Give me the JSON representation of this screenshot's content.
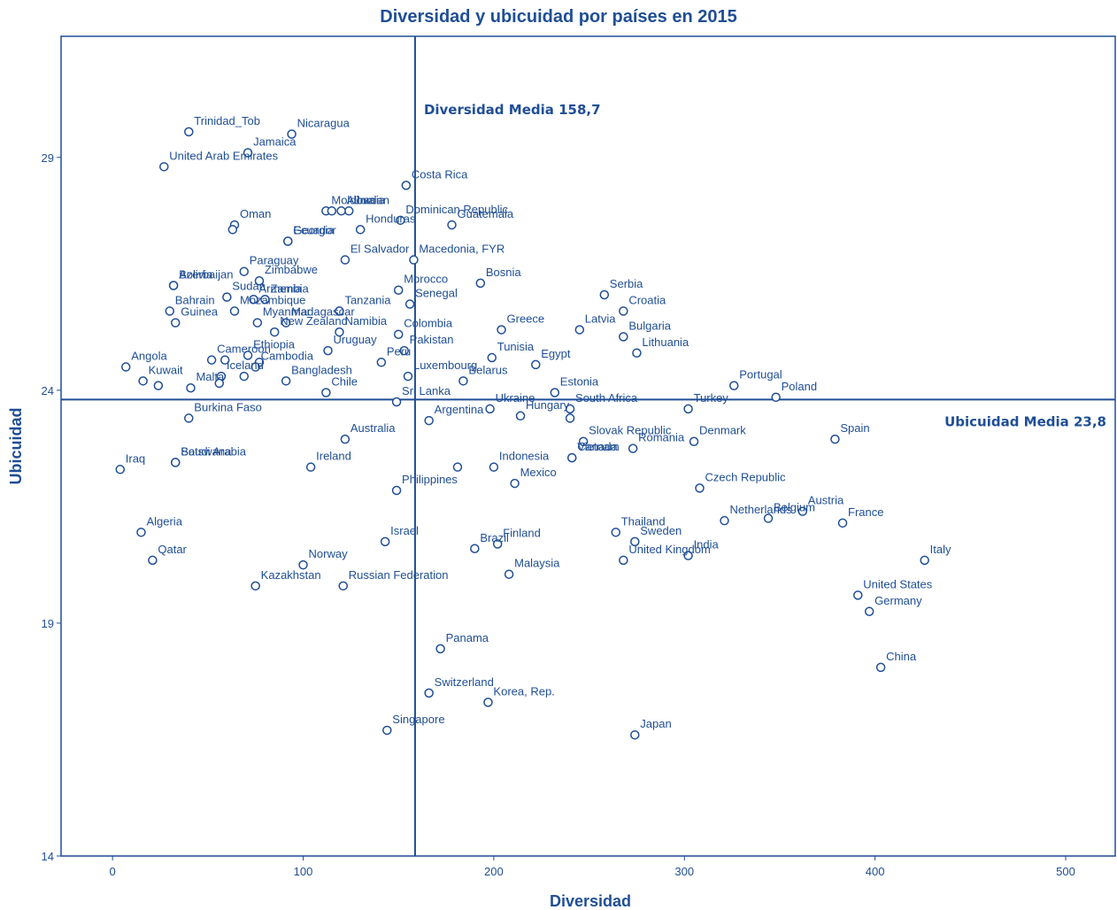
{
  "chart_data": {
    "type": "scatter",
    "title": "Diversidad y ubicuidad por países en 2015",
    "xlabel": "Diversidad",
    "ylabel": "Ubicuidad",
    "xlim": [
      -27,
      526
    ],
    "ylim": [
      14,
      31.6
    ],
    "xticks": [
      0,
      100,
      200,
      300,
      400,
      500
    ],
    "yticks": [
      14,
      19,
      24,
      29
    ],
    "grid": false,
    "reference_lines": [
      {
        "axis": "x",
        "value": 158.7,
        "label": "Diversidad Media 158,7"
      },
      {
        "axis": "y",
        "value": 23.8,
        "label": "Ubicuidad Media 23,8"
      }
    ],
    "points": [
      {
        "name": "Trinidad_Tob",
        "x": 40,
        "y": 29.55
      },
      {
        "name": "Nicaragua",
        "x": 94,
        "y": 29.5
      },
      {
        "name": "Jamaica",
        "x": 71,
        "y": 29.1
      },
      {
        "name": "United Arab Emirates",
        "x": 27,
        "y": 28.8
      },
      {
        "name": "Costa Rica",
        "x": 154,
        "y": 28.4
      },
      {
        "name": "Moldova",
        "x": 112,
        "y": 27.85
      },
      {
        "name": "Jordan",
        "x": 124,
        "y": 27.85
      },
      {
        "name": "Albania",
        "x": 120,
        "y": 27.85
      },
      {
        "name": "",
        "x": 115,
        "y": 27.85
      },
      {
        "name": "Dominican Republic",
        "x": 151,
        "y": 27.65
      },
      {
        "name": "Oman",
        "x": 64,
        "y": 27.55
      },
      {
        "name": "",
        "x": 63,
        "y": 27.45
      },
      {
        "name": "Honduras",
        "x": 130,
        "y": 27.45
      },
      {
        "name": "Guatemala",
        "x": 178,
        "y": 27.55
      },
      {
        "name": "Ecuador",
        "x": 92,
        "y": 27.2
      },
      {
        "name": "Georgia",
        "x": 92,
        "y": 27.2
      },
      {
        "name": "Macedonia, FYR",
        "x": 158,
        "y": 26.8
      },
      {
        "name": "El Salvador",
        "x": 122,
        "y": 26.8
      },
      {
        "name": "Paraguay",
        "x": 69,
        "y": 26.55
      },
      {
        "name": "Zimbabwe",
        "x": 77,
        "y": 26.35
      },
      {
        "name": "Bosnia",
        "x": 193,
        "y": 26.3
      },
      {
        "name": "Serbia",
        "x": 258,
        "y": 26.05
      },
      {
        "name": "Croatia",
        "x": 268,
        "y": 25.7
      },
      {
        "name": "Azerbaijan",
        "x": 32,
        "y": 26.25
      },
      {
        "name": "Bolivia",
        "x": 32,
        "y": 26.25
      },
      {
        "name": "Morocco",
        "x": 150,
        "y": 26.15
      },
      {
        "name": "Armenia",
        "x": 74,
        "y": 25.95
      },
      {
        "name": "Zambia",
        "x": 80,
        "y": 25.95
      },
      {
        "name": "Sudan",
        "x": 60,
        "y": 26.0
      },
      {
        "name": "Senegal",
        "x": 156,
        "y": 25.85
      },
      {
        "name": "Bahrain",
        "x": 30,
        "y": 25.7
      },
      {
        "name": "Mozambique",
        "x": 64,
        "y": 25.7
      },
      {
        "name": "Tanzania",
        "x": 119,
        "y": 25.7
      },
      {
        "name": "Guinea",
        "x": 33,
        "y": 25.45
      },
      {
        "name": "Myanmar",
        "x": 76,
        "y": 25.45
      },
      {
        "name": "Madagascar",
        "x": 91,
        "y": 25.45
      },
      {
        "name": "New Zealand",
        "x": 85,
        "y": 25.25
      },
      {
        "name": "Namibia",
        "x": 119,
        "y": 25.25
      },
      {
        "name": "Colombia",
        "x": 150,
        "y": 25.2
      },
      {
        "name": "Pakistan",
        "x": 153,
        "y": 24.85
      },
      {
        "name": "Greece",
        "x": 204,
        "y": 25.3
      },
      {
        "name": "Latvia",
        "x": 245,
        "y": 25.3
      },
      {
        "name": "Bulgaria",
        "x": 268,
        "y": 25.15
      },
      {
        "name": "Lithuania",
        "x": 275,
        "y": 24.8
      },
      {
        "name": "Tunisia",
        "x": 199,
        "y": 24.7
      },
      {
        "name": "Egypt",
        "x": 222,
        "y": 24.55
      },
      {
        "name": "Angola",
        "x": 7,
        "y": 24.5
      },
      {
        "name": "Kuwait",
        "x": 16,
        "y": 24.2
      },
      {
        "name": "Cameroon",
        "x": 52,
        "y": 24.65
      },
      {
        "name": "",
        "x": 59,
        "y": 24.65
      },
      {
        "name": "Ethiopia",
        "x": 71,
        "y": 24.75
      },
      {
        "name": "",
        "x": 77,
        "y": 24.6
      },
      {
        "name": "Cambodia",
        "x": 75,
        "y": 24.5
      },
      {
        "name": "Uruguay",
        "x": 113,
        "y": 24.85
      },
      {
        "name": "Peru",
        "x": 141,
        "y": 24.6
      },
      {
        "name": "Luxembourg",
        "x": 155,
        "y": 24.3
      },
      {
        "name": "Iceland",
        "x": 57,
        "y": 24.3
      },
      {
        "name": "",
        "x": 69,
        "y": 24.3
      },
      {
        "name": "",
        "x": 24,
        "y": 24.1
      },
      {
        "name": "Malta",
        "x": 41,
        "y": 24.05
      },
      {
        "name": "",
        "x": 56,
        "y": 24.15
      },
      {
        "name": "Bangladesh",
        "x": 91,
        "y": 24.2
      },
      {
        "name": "Belarus",
        "x": 184,
        "y": 24.2
      },
      {
        "name": "Estonia",
        "x": 232,
        "y": 23.95
      },
      {
        "name": "Portugal",
        "x": 326,
        "y": 24.1
      },
      {
        "name": "Poland",
        "x": 348,
        "y": 23.85
      },
      {
        "name": "Turkey",
        "x": 302,
        "y": 23.6
      },
      {
        "name": "Sri Lanka",
        "x": 149,
        "y": 23.75
      },
      {
        "name": "Chile",
        "x": 112,
        "y": 23.95
      },
      {
        "name": "Burkina Faso",
        "x": 40,
        "y": 23.4
      },
      {
        "name": "Argentina",
        "x": 166,
        "y": 23.35
      },
      {
        "name": "Ukraine",
        "x": 198,
        "y": 23.6
      },
      {
        "name": "South Africa",
        "x": 240,
        "y": 23.6
      },
      {
        "name": "",
        "x": 240,
        "y": 23.4
      },
      {
        "name": "Hungary",
        "x": 214,
        "y": 23.45
      },
      {
        "name": "Australia",
        "x": 122,
        "y": 22.95
      },
      {
        "name": "Slovak Republic",
        "x": 247,
        "y": 22.9
      },
      {
        "name": "Romania",
        "x": 273,
        "y": 22.75
      },
      {
        "name": "Denmark",
        "x": 305,
        "y": 22.9
      },
      {
        "name": "Spain",
        "x": 379,
        "y": 22.95
      },
      {
        "name": "Vietnam",
        "x": 241,
        "y": 22.55
      },
      {
        "name": "Iraq",
        "x": 4,
        "y": 22.3
      },
      {
        "name": "Botswana",
        "x": 33,
        "y": 22.45
      },
      {
        "name": "Saudi Arabia",
        "x": 33,
        "y": 22.45
      },
      {
        "name": "Ireland",
        "x": 104,
        "y": 22.35
      },
      {
        "name": "",
        "x": 181,
        "y": 22.35
      },
      {
        "name": "Indonesia",
        "x": 200,
        "y": 22.35
      },
      {
        "name": "Mexico",
        "x": 211,
        "y": 22.0
      },
      {
        "name": "Canada",
        "x": 241,
        "y": 22.55
      },
      {
        "name": "Czech Republic",
        "x": 308,
        "y": 21.9
      },
      {
        "name": "Philippines",
        "x": 149,
        "y": 21.85
      },
      {
        "name": "Austria",
        "x": 362,
        "y": 21.4
      },
      {
        "name": "Netherlands",
        "x": 321,
        "y": 21.2
      },
      {
        "name": "Belgium",
        "x": 344,
        "y": 21.25
      },
      {
        "name": "France",
        "x": 383,
        "y": 21.15
      },
      {
        "name": "Algeria",
        "x": 15,
        "y": 20.95
      },
      {
        "name": "Thailand",
        "x": 264,
        "y": 20.95
      },
      {
        "name": "Finland",
        "x": 202,
        "y": 20.7
      },
      {
        "name": "Sweden",
        "x": 274,
        "y": 20.75
      },
      {
        "name": "India",
        "x": 302,
        "y": 20.45
      },
      {
        "name": "Israel",
        "x": 143,
        "y": 20.75
      },
      {
        "name": "Brazil",
        "x": 190,
        "y": 20.6
      },
      {
        "name": "Qatar",
        "x": 21,
        "y": 20.35
      },
      {
        "name": "Norway",
        "x": 100,
        "y": 20.25
      },
      {
        "name": "United Kingdom",
        "x": 268,
        "y": 20.35
      },
      {
        "name": "Italy",
        "x": 426,
        "y": 20.35
      },
      {
        "name": "Malaysia",
        "x": 208,
        "y": 20.05
      },
      {
        "name": "Kazakhstan",
        "x": 75,
        "y": 19.8
      },
      {
        "name": "Russian Federation",
        "x": 121,
        "y": 19.8
      },
      {
        "name": "United States",
        "x": 391,
        "y": 19.6
      },
      {
        "name": "Germany",
        "x": 397,
        "y": 19.25
      },
      {
        "name": "Panama",
        "x": 172,
        "y": 18.45
      },
      {
        "name": "China",
        "x": 403,
        "y": 18.05
      },
      {
        "name": "Switzerland",
        "x": 166,
        "y": 17.5
      },
      {
        "name": "Korea, Rep.",
        "x": 197,
        "y": 17.3
      },
      {
        "name": "Singapore",
        "x": 144,
        "y": 16.7
      },
      {
        "name": "Japan",
        "x": 274,
        "y": 16.6
      }
    ]
  }
}
